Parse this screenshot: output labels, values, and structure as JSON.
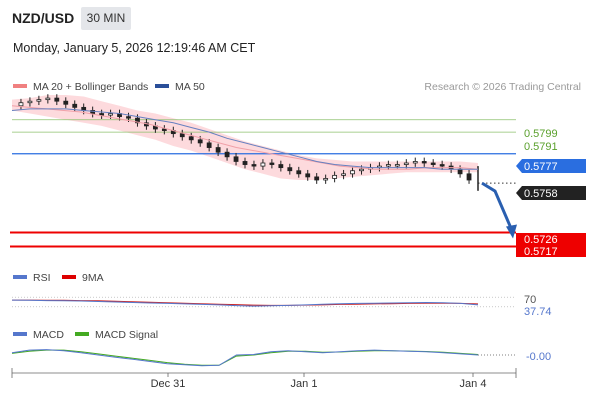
{
  "header": {
    "pair": "NZD/USD",
    "timeframe": "30 MIN",
    "datetime": "Monday, January 5, 2026 12:19:46 AM CET"
  },
  "legend": {
    "bollinger": "MA 20 + Bollinger Bands",
    "ma50": "MA 50",
    "credit": "Research © 2026 Trading Central",
    "rsi": "RSI",
    "rsi_ma": "9MA",
    "macd": "MACD",
    "macd_signal": "MACD Signal"
  },
  "colors": {
    "bollinger_fill": "#fdd6d9",
    "ma20": "#f0a0a8",
    "ma50": "#6680c0",
    "candle": "#222222",
    "resistance_line": "#8cc06c",
    "pivot": "#2a6ee0",
    "support": "#ee0000",
    "arrow": "#2a5fb0",
    "rsi": "#5577cc",
    "rsi_ma": "#cc2222",
    "macd": "#5577cc",
    "macd_signal": "#44aa22"
  },
  "levels": [
    {
      "label": "0.5799",
      "kind": "resistance"
    },
    {
      "label": "0.5791",
      "kind": "resistance"
    },
    {
      "label": "0.5777",
      "kind": "pivot"
    },
    {
      "label": "0.5758",
      "kind": "last"
    },
    {
      "label": "0.5726",
      "kind": "support"
    },
    {
      "label": "0.5717",
      "kind": "support"
    }
  ],
  "rsi_labels": [
    "70",
    "37.74"
  ],
  "macd_label": "-0.00",
  "x_ticks": [
    "Dec 31",
    "Jan 1",
    "Jan 4"
  ],
  "chart_data": {
    "type": "candlestick",
    "title": "NZD/USD",
    "ylim": [
      0.5705,
      0.5815
    ],
    "price_series": [
      0.5808,
      0.581,
      0.5811,
      0.5812,
      0.5813,
      0.5811,
      0.5809,
      0.5807,
      0.5805,
      0.5803,
      0.5802,
      0.5803,
      0.5801,
      0.58,
      0.5797,
      0.5795,
      0.5793,
      0.5792,
      0.579,
      0.5788,
      0.5786,
      0.5784,
      0.5781,
      0.5778,
      0.5775,
      0.5772,
      0.577,
      0.5769,
      0.5771,
      0.577,
      0.5768,
      0.5766,
      0.5764,
      0.5762,
      0.576,
      0.5761,
      0.5763,
      0.5764,
      0.5766,
      0.5767,
      0.5768,
      0.5769,
      0.577,
      0.577,
      0.5771,
      0.5772,
      0.5771,
      0.577,
      0.5769,
      0.5767,
      0.5764,
      0.576
    ],
    "ma20": [
      0.5808,
      0.5807,
      0.5806,
      0.5805,
      0.5804,
      0.5802,
      0.58,
      0.5798,
      0.5796,
      0.5793,
      0.579,
      0.5787,
      0.5784,
      0.5781,
      0.5779,
      0.5777,
      0.5775,
      0.5773,
      0.5771,
      0.5769,
      0.5768,
      0.5767,
      0.5767,
      0.5767,
      0.5768,
      0.5768,
      0.5768,
      0.5767
    ],
    "ma50": [
      0.5805,
      0.5806,
      0.5806,
      0.5806,
      0.5805,
      0.5804,
      0.5803,
      0.5801,
      0.5799,
      0.5797,
      0.5794,
      0.5791,
      0.5787,
      0.5784,
      0.5781,
      0.5778,
      0.5775,
      0.5772,
      0.577,
      0.5769,
      0.5768,
      0.5768,
      0.5768,
      0.5768,
      0.5767,
      0.5767,
      0.5767
    ],
    "bollinger_upper": [
      0.5812,
      0.5813,
      0.5815,
      0.5815,
      0.5814,
      0.5811,
      0.5808,
      0.5805,
      0.5803,
      0.58,
      0.5797,
      0.5793,
      0.5789,
      0.5785,
      0.5782,
      0.5779,
      0.5776,
      0.5774,
      0.5773,
      0.5772,
      0.5772,
      0.5772,
      0.5772,
      0.5772,
      0.5772,
      0.5772,
      0.5771
    ],
    "bollinger_lower": [
      0.5805,
      0.5803,
      0.5801,
      0.5799,
      0.5797,
      0.5795,
      0.5792,
      0.5789,
      0.5786,
      0.5782,
      0.5779,
      0.5775,
      0.5771,
      0.5767,
      0.5764,
      0.5761,
      0.576,
      0.576,
      0.5761,
      0.5762,
      0.5763,
      0.5764,
      0.5765,
      0.5765,
      0.5765,
      0.5765,
      0.5765
    ],
    "last_drop": {
      "from": 0.5769,
      "to": 0.5753,
      "close": 0.5758
    },
    "forecast": {
      "from": 0.5758,
      "to": 0.5726
    },
    "rsi": {
      "ylim": [
        0,
        100
      ],
      "values": [
        58,
        57,
        56,
        55,
        54,
        52,
        50,
        48,
        46,
        44,
        42,
        40,
        38,
        35,
        33,
        34,
        36,
        38,
        41,
        43,
        44,
        45,
        46,
        47,
        48,
        47,
        44,
        38
      ]
    },
    "rsi_ma": {
      "values": [
        58,
        58,
        57,
        57,
        56,
        55,
        53,
        51,
        49,
        47,
        45,
        43,
        41,
        39,
        37,
        36,
        36,
        37,
        38,
        40,
        41,
        42,
        43,
        44,
        45,
        45,
        44,
        42
      ]
    },
    "macd": {
      "ylim": [
        -1.2,
        1.2
      ],
      "values": [
        0.2,
        0.45,
        0.5,
        0.4,
        0.2,
        0.0,
        -0.2,
        -0.4,
        -0.6,
        -0.8,
        -0.9,
        -1.0,
        -0.95,
        0.0,
        0.05,
        0.3,
        0.4,
        0.3,
        0.2,
        0.3,
        0.4,
        0.45,
        0.4,
        0.35,
        0.3,
        0.2,
        0.1,
        0.0
      ]
    },
    "macd_signal": {
      "values": [
        0.15,
        0.35,
        0.45,
        0.45,
        0.3,
        0.1,
        -0.1,
        -0.3,
        -0.5,
        -0.7,
        -0.85,
        -0.95,
        -0.95,
        -0.1,
        0.0,
        0.2,
        0.35,
        0.35,
        0.25,
        0.28,
        0.35,
        0.4,
        0.4,
        0.36,
        0.32,
        0.25,
        0.15,
        0.05
      ]
    }
  }
}
